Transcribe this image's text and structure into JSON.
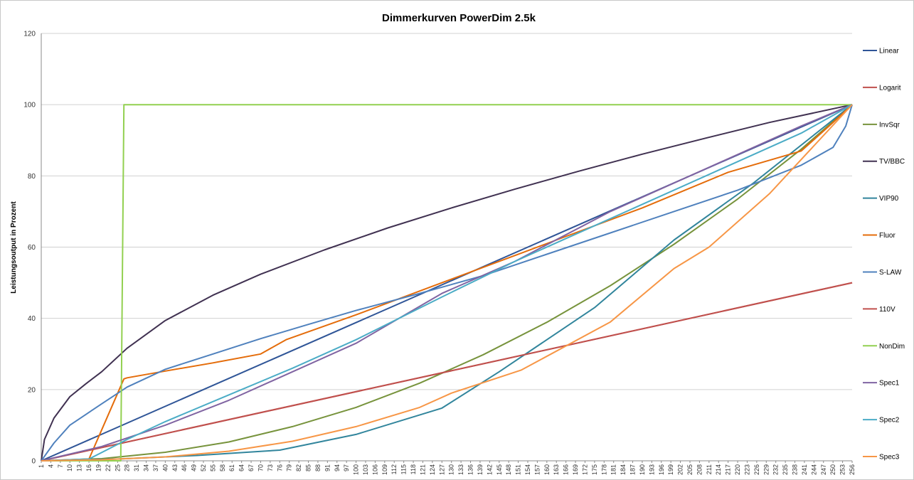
{
  "chart_data": {
    "type": "line",
    "title": "Dimmerkurven PowerDim 2.5k",
    "ylabel": "Leistungsoutput in Prozent",
    "xlabel": "",
    "ylim": [
      0,
      120
    ],
    "yticks": [
      0,
      20,
      40,
      60,
      80,
      100,
      120
    ],
    "xlim": [
      1,
      256
    ],
    "xticks_start": 1,
    "xticks_step": 3,
    "xticks_last": 256,
    "grid": "horizontal",
    "legend_position": "right",
    "series": [
      {
        "name": "Linear",
        "color": "#2f5597",
        "x": [
          1,
          256
        ],
        "y": [
          0,
          100
        ]
      },
      {
        "name": "Logarit",
        "color": "#c0504d",
        "x": [
          1,
          256
        ],
        "y": [
          0,
          50
        ]
      },
      {
        "name": "InvSqr",
        "color": "#77933c",
        "x": [
          1,
          20,
          40,
          60,
          80,
          100,
          120,
          140,
          160,
          180,
          200,
          220,
          240,
          256
        ],
        "y": [
          0,
          0.6,
          2.4,
          5.3,
          9.6,
          15,
          21.8,
          29.8,
          38.9,
          49.2,
          60.8,
          73.5,
          87.5,
          100
        ]
      },
      {
        "name": "TV/BBC",
        "color": "#403151",
        "x": [
          1,
          2,
          5,
          10,
          15,
          20,
          28,
          40,
          55,
          70,
          90,
          110,
          130,
          150,
          170,
          190,
          210,
          230,
          256
        ],
        "y": [
          0,
          6,
          12,
          18,
          21.6,
          25,
          31.6,
          39.4,
          46.5,
          52.4,
          59.2,
          65.4,
          71,
          76.3,
          81.3,
          86.1,
          90.6,
          95,
          100
        ]
      },
      {
        "name": "VIP90",
        "color": "#31859c",
        "x": [
          1,
          25,
          50,
          76,
          100,
          127,
          145,
          175,
          200,
          225,
          256
        ],
        "y": [
          0,
          0.5,
          1.5,
          3,
          7.4,
          14.8,
          25,
          43,
          62,
          78,
          100
        ]
      },
      {
        "name": "Fluor",
        "color": "#e46c0a",
        "x": [
          1,
          16,
          27,
          28,
          40,
          55,
          70,
          78,
          100,
          130,
          160,
          190,
          217,
          240,
          250,
          256
        ],
        "y": [
          0,
          0.5,
          23,
          23.3,
          25.2,
          27.5,
          30,
          34,
          41,
          51,
          61,
          71,
          81,
          87,
          95,
          100
        ]
      },
      {
        "name": "S-LAW",
        "color": "#4f81bd",
        "x": [
          1,
          5,
          10,
          15,
          20,
          28,
          40,
          55,
          70,
          85,
          100,
          120,
          140,
          160,
          180,
          200,
          220,
          240,
          250,
          254,
          256
        ],
        "y": [
          0,
          5,
          10,
          13,
          16,
          20.7,
          25.7,
          30,
          34.3,
          38.3,
          42.2,
          47,
          52,
          58,
          64,
          70,
          76,
          83,
          88,
          94,
          100
        ]
      },
      {
        "name": "110V",
        "color": "#c0504d",
        "x": [
          1,
          256
        ],
        "y": [
          0,
          50
        ]
      },
      {
        "name": "NonDim",
        "color": "#92d050",
        "x": [
          1,
          26,
          26.01,
          27,
          256
        ],
        "y": [
          0,
          0,
          1,
          100,
          100
        ]
      },
      {
        "name": "Spec1",
        "color": "#8064a2",
        "x": [
          1,
          20,
          40,
          60,
          80,
          100,
          127,
          150,
          180,
          210,
          240,
          256
        ],
        "y": [
          0,
          4,
          10,
          17,
          25,
          33,
          47,
          56,
          70,
          82,
          94,
          100
        ]
      },
      {
        "name": "Spec2",
        "color": "#4bacc6",
        "x": [
          1,
          16,
          28,
          40,
          60,
          80,
          100,
          127,
          150,
          180,
          210,
          240,
          256
        ],
        "y": [
          0,
          0.5,
          6,
          11,
          18.5,
          26,
          34,
          46,
          56,
          68,
          80,
          92,
          100
        ]
      },
      {
        "name": "Spec3",
        "color": "#f79646",
        "x": [
          1,
          20,
          40,
          60,
          80,
          100,
          120,
          130,
          152,
          180,
          200,
          211,
          230,
          256
        ],
        "y": [
          0,
          0.3,
          1.1,
          2.7,
          5.5,
          9.6,
          15,
          19,
          25.5,
          39,
          54,
          60,
          75,
          100
        ]
      }
    ]
  }
}
